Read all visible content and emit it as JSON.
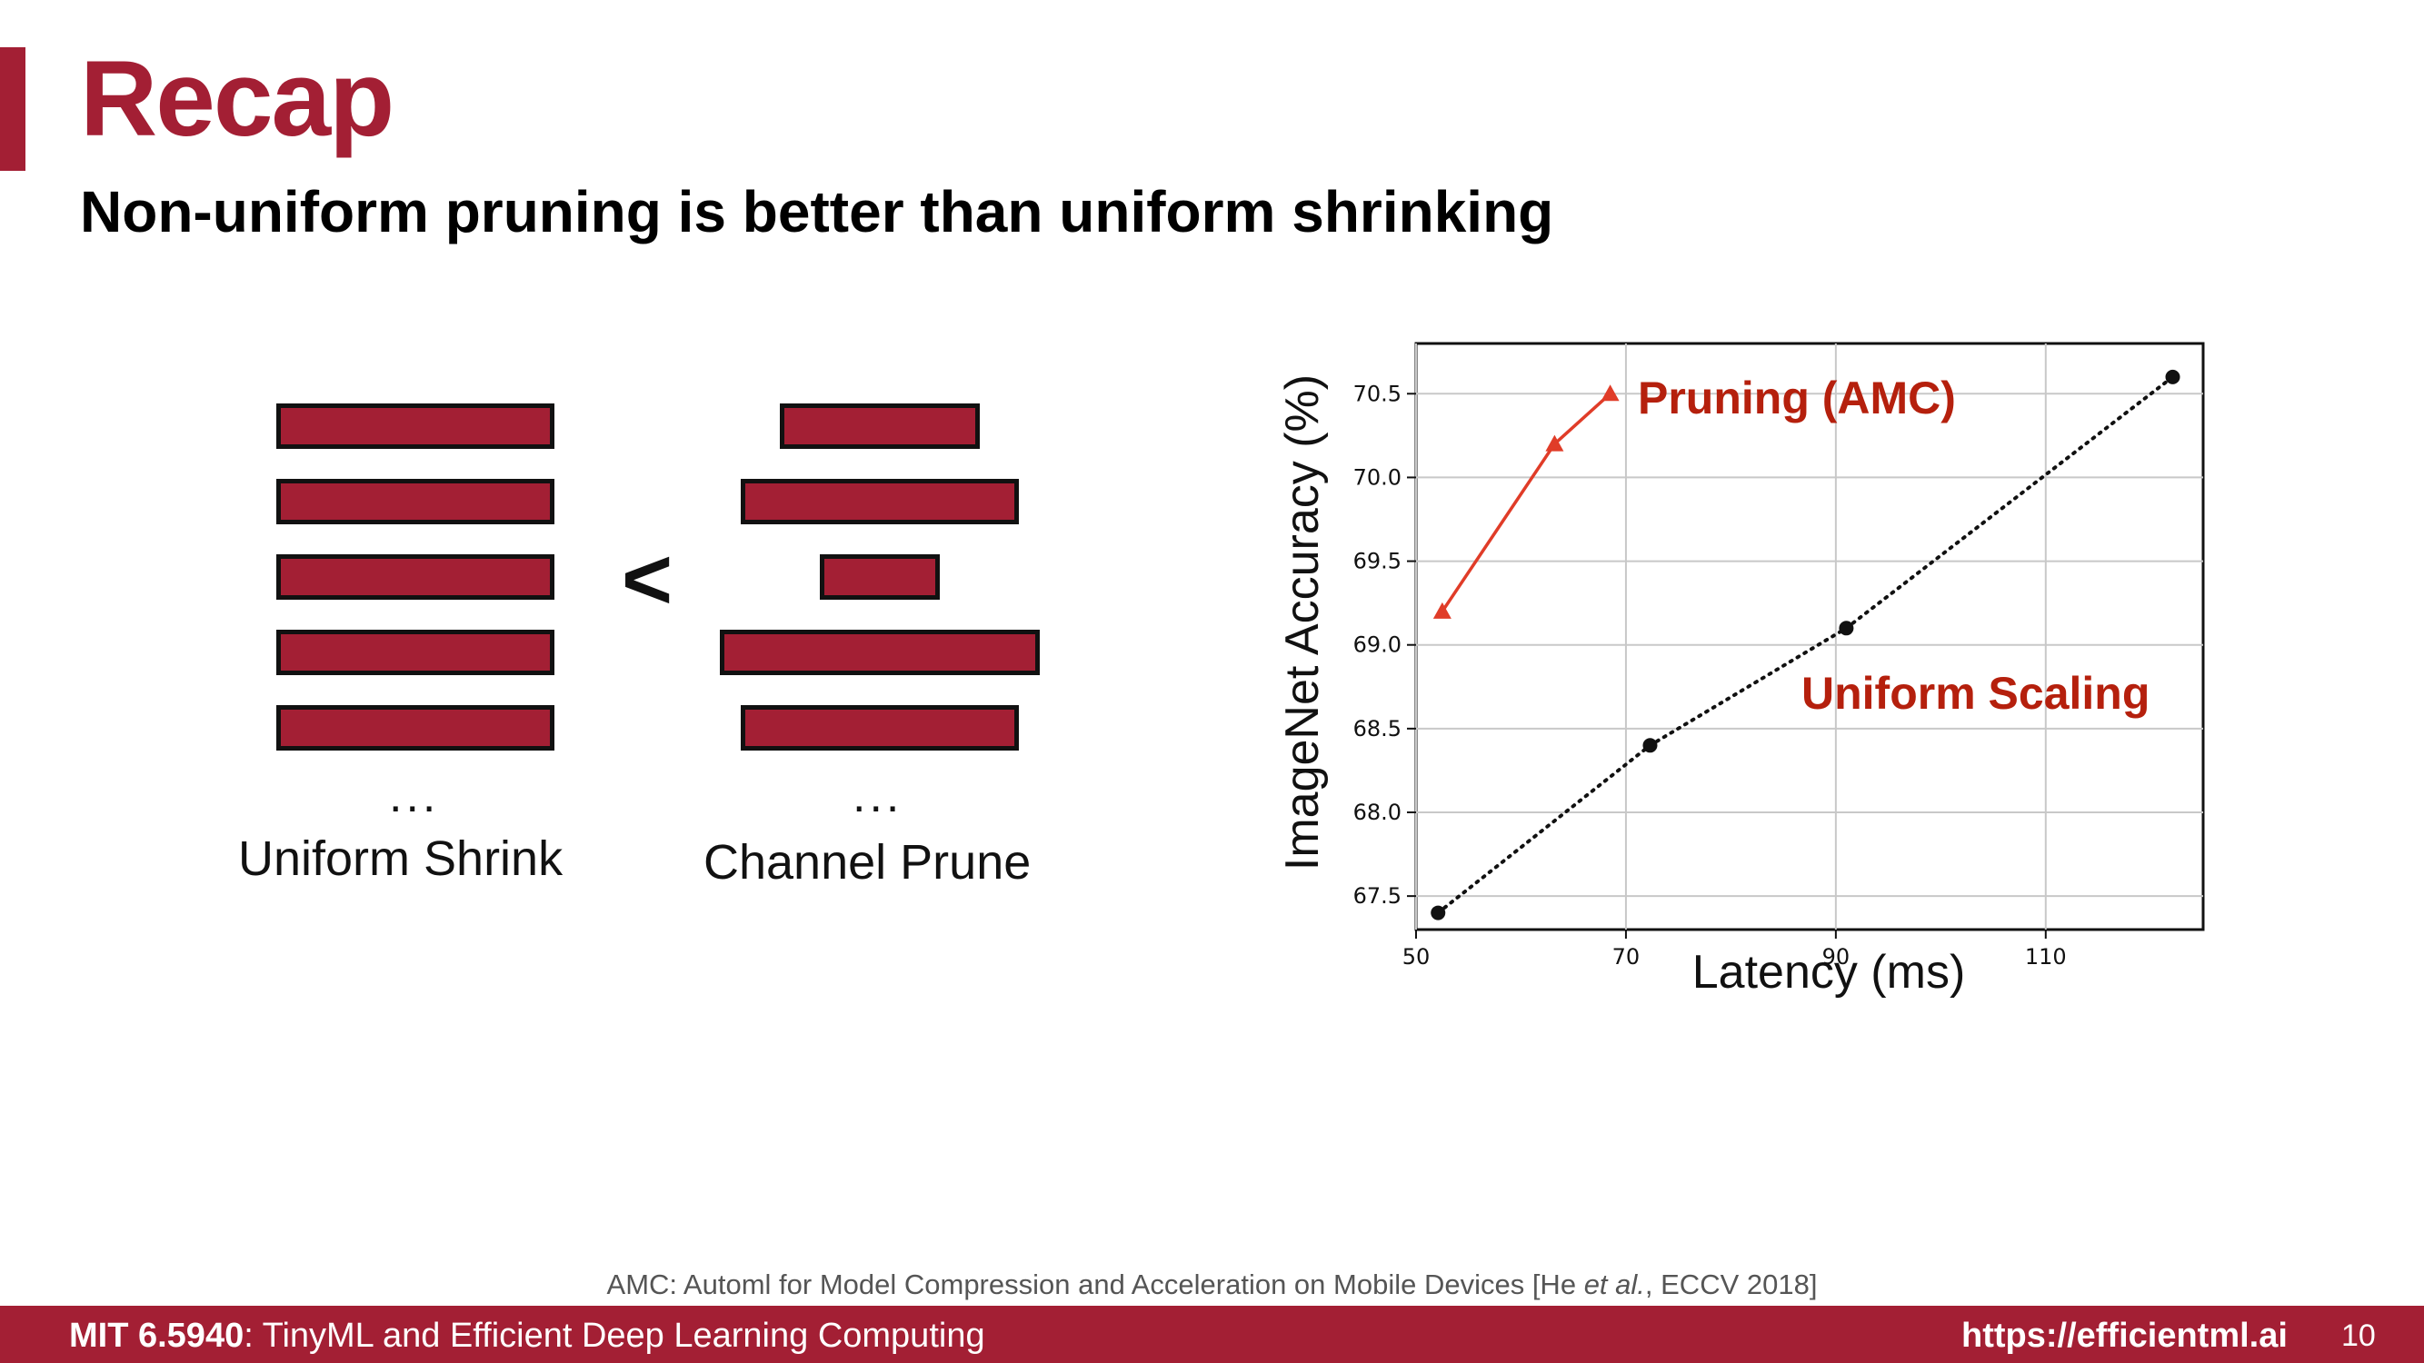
{
  "slide": {
    "title": "Recap",
    "subtitle": "Non-uniform pruning is better than uniform shrinking",
    "accent_color": "#a31f34"
  },
  "diagram": {
    "comparison_symbol": "<",
    "uniform": {
      "caption": "Uniform Shrink",
      "ellipsis": "...",
      "relative_widths": [
        1.0,
        1.0,
        1.0,
        1.0,
        1.0
      ]
    },
    "channel": {
      "caption": "Channel Prune",
      "ellipsis": "...",
      "relative_widths": [
        0.72,
        1.0,
        0.43,
        1.15,
        1.0
      ]
    }
  },
  "chart_data": {
    "type": "line",
    "xlabel": "Latency (ms)",
    "ylabel": "ImageNet Accuracy (%)",
    "xlim": [
      50,
      125
    ],
    "ylim": [
      67.3,
      70.8
    ],
    "xticks": [
      50,
      70,
      90,
      110
    ],
    "yticks": [
      67.5,
      68.0,
      68.5,
      69.0,
      69.5,
      70.0,
      70.5
    ],
    "ytick_labels": [
      "67.5",
      "68.0",
      "68.5",
      "69.0",
      "69.5",
      "70.0",
      "70.5"
    ],
    "grid": true,
    "series": [
      {
        "name": "Pruning (AMC)",
        "color": "#e03c28",
        "label_color": "#b5200d",
        "marker": "triangle",
        "line": "solid",
        "x": [
          52.5,
          63.2,
          68.5
        ],
        "y": [
          69.2,
          70.2,
          70.5
        ]
      },
      {
        "name": "Uniform Scaling",
        "color": "#111111",
        "label_color": "#b5200d",
        "marker": "circle",
        "line": "dotted",
        "x": [
          52.1,
          72.3,
          91.0,
          122.1
        ],
        "y": [
          67.4,
          68.4,
          69.1,
          70.6
        ]
      }
    ]
  },
  "reference": {
    "prefix": "AMC: Automl for Model Compression and Acceleration on Mobile Devices [He ",
    "etal": "et al.",
    "suffix": ", ECCV 2018]"
  },
  "footer": {
    "course_code": "MIT 6.5940",
    "course_name": ": TinyML and Efficient Deep Learning Computing",
    "url": "https://efficientml.ai",
    "page_number": "10"
  }
}
